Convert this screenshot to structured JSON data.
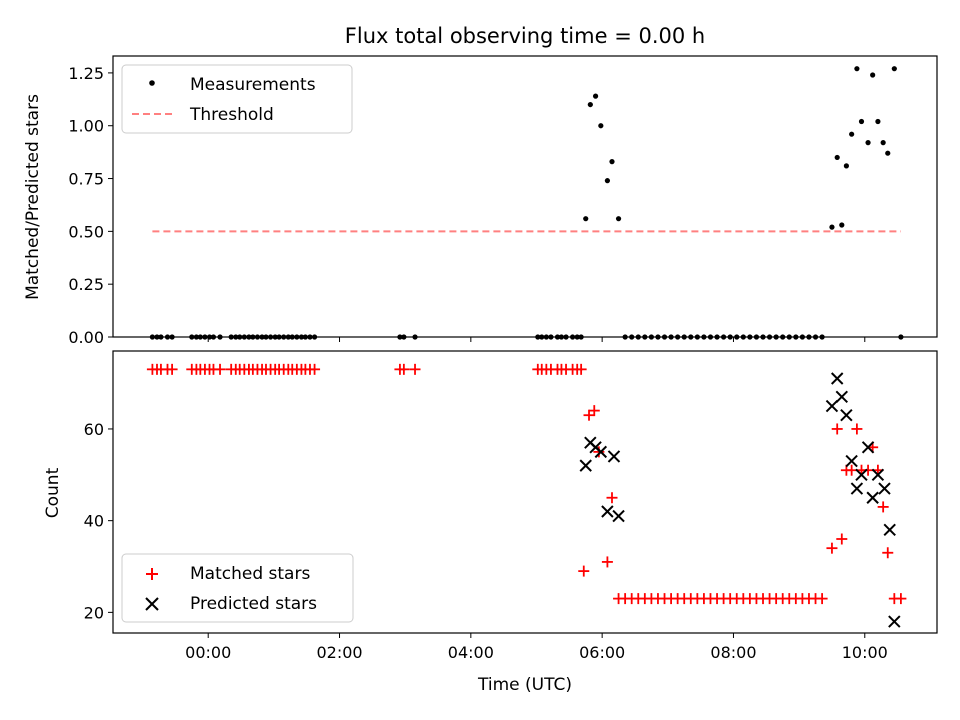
{
  "chart_data": [
    {
      "type": "scatter",
      "title": "Flux total observing time = 0.00 h",
      "xlabel": "",
      "ylabel": "Matched/Predicted stars",
      "ylim": [
        0,
        1.33
      ],
      "xlim": [
        -1.45,
        11.1
      ],
      "yticks": [
        0,
        0.25,
        0.5,
        0.75,
        1.0,
        1.25
      ],
      "ytick_labels": [
        "0.00",
        "0.25",
        "0.50",
        "0.75",
        "1.00",
        "1.25"
      ],
      "legend": {
        "position": "upper-left",
        "entries": [
          "Measurements",
          "Threshold"
        ]
      },
      "threshold": {
        "name": "Threshold",
        "value": 0.5,
        "x_range": [
          -0.85,
          10.55
        ],
        "color": "#ff8080"
      },
      "measurements": {
        "name": "Measurements",
        "color": "#000000",
        "x": [
          -0.85,
          -0.78,
          -0.72,
          -0.62,
          -0.55,
          -0.25,
          -0.18,
          -0.12,
          -0.05,
          0.02,
          0.08,
          0.18,
          0.35,
          0.42,
          0.48,
          0.55,
          0.62,
          0.68,
          0.75,
          0.82,
          0.88,
          0.95,
          1.02,
          1.08,
          1.15,
          1.22,
          1.28,
          1.35,
          1.42,
          1.48,
          1.55,
          1.62,
          2.92,
          2.98,
          3.15,
          5.02,
          5.08,
          5.15,
          5.22,
          5.32,
          5.38,
          5.45,
          5.55,
          5.62,
          5.68,
          5.75,
          5.82,
          5.9,
          5.98,
          6.08,
          6.15,
          6.25,
          6.35,
          6.45,
          6.55,
          6.65,
          6.75,
          6.85,
          6.95,
          7.05,
          7.15,
          7.25,
          7.35,
          7.45,
          7.55,
          7.65,
          7.75,
          7.85,
          7.95,
          8.05,
          8.15,
          8.25,
          8.35,
          8.45,
          8.55,
          8.65,
          8.75,
          8.85,
          8.95,
          9.05,
          9.15,
          9.25,
          9.35,
          9.5,
          9.58,
          9.65,
          9.72,
          9.8,
          9.88,
          9.95,
          10.05,
          10.12,
          10.2,
          10.28,
          10.35,
          10.45,
          10.55
        ],
        "y": [
          0,
          0,
          0,
          0,
          0,
          0,
          0,
          0,
          0,
          0,
          0,
          0,
          0,
          0,
          0,
          0,
          0,
          0,
          0,
          0,
          0,
          0,
          0,
          0,
          0,
          0,
          0,
          0,
          0,
          0,
          0,
          0,
          0,
          0,
          0,
          0,
          0,
          0,
          0,
          0,
          0,
          0,
          0,
          0,
          0,
          0.56,
          1.1,
          1.14,
          1.0,
          0.74,
          0.83,
          0.56,
          0,
          0,
          0,
          0,
          0,
          0,
          0,
          0,
          0,
          0,
          0,
          0,
          0,
          0,
          0,
          0,
          0,
          0,
          0,
          0,
          0,
          0,
          0,
          0,
          0,
          0,
          0,
          0,
          0,
          0,
          0,
          0.52,
          0.85,
          0.53,
          0.81,
          0.96,
          1.27,
          1.02,
          0.92,
          1.24,
          1.02,
          0.92,
          0.87,
          1.27,
          0
        ]
      }
    },
    {
      "type": "scatter",
      "title": "",
      "xlabel": "Time (UTC)",
      "ylabel": "Count",
      "ylim": [
        15.5,
        77
      ],
      "xlim": [
        -1.45,
        11.1
      ],
      "yticks": [
        20,
        40,
        60
      ],
      "ytick_labels": [
        "20",
        "40",
        "60"
      ],
      "xticks": [
        0,
        2,
        4,
        6,
        8,
        10
      ],
      "xtick_labels": [
        "00:00",
        "02:00",
        "04:00",
        "06:00",
        "08:00",
        "10:00"
      ],
      "legend": {
        "position": "lower-left",
        "entries": [
          "Matched stars",
          "Predicted stars"
        ]
      },
      "matched": {
        "name": "Matched stars",
        "color": "#ff0000",
        "marker": "+",
        "x": [
          -0.85,
          -0.78,
          -0.72,
          -0.62,
          -0.55,
          -0.25,
          -0.18,
          -0.12,
          -0.05,
          0.02,
          0.08,
          0.18,
          0.35,
          0.42,
          0.48,
          0.55,
          0.62,
          0.68,
          0.75,
          0.82,
          0.88,
          0.95,
          1.02,
          1.08,
          1.15,
          1.22,
          1.28,
          1.35,
          1.42,
          1.48,
          1.55,
          1.62,
          2.92,
          2.98,
          3.15,
          5.02,
          5.08,
          5.15,
          5.22,
          5.32,
          5.38,
          5.45,
          5.55,
          5.62,
          5.68,
          5.72,
          5.8,
          5.88,
          5.95,
          6.08,
          6.15,
          6.25,
          6.35,
          6.45,
          6.55,
          6.65,
          6.75,
          6.85,
          6.95,
          7.05,
          7.15,
          7.25,
          7.35,
          7.45,
          7.55,
          7.65,
          7.75,
          7.85,
          7.95,
          8.05,
          8.15,
          8.25,
          8.35,
          8.45,
          8.55,
          8.65,
          8.75,
          8.85,
          8.95,
          9.05,
          9.15,
          9.25,
          9.35,
          9.5,
          9.58,
          9.65,
          9.72,
          9.8,
          9.88,
          9.95,
          10.05,
          10.12,
          10.2,
          10.28,
          10.35,
          10.45,
          10.55
        ],
        "y": [
          73,
          73,
          73,
          73,
          73,
          73,
          73,
          73,
          73,
          73,
          73,
          73,
          73,
          73,
          73,
          73,
          73,
          73,
          73,
          73,
          73,
          73,
          73,
          73,
          73,
          73,
          73,
          73,
          73,
          73,
          73,
          73,
          73,
          73,
          73,
          73,
          73,
          73,
          73,
          73,
          73,
          73,
          73,
          73,
          73,
          29,
          63,
          64,
          55,
          31,
          45,
          23,
          23,
          23,
          23,
          23,
          23,
          23,
          23,
          23,
          23,
          23,
          23,
          23,
          23,
          23,
          23,
          23,
          23,
          23,
          23,
          23,
          23,
          23,
          23,
          23,
          23,
          23,
          23,
          23,
          23,
          23,
          23,
          34,
          60,
          36,
          51,
          51,
          60,
          51,
          51,
          56,
          51,
          43,
          33,
          23,
          23
        ]
      },
      "predicted": {
        "name": "Predicted stars",
        "color": "#000000",
        "marker": "x",
        "x": [
          5.75,
          5.82,
          5.9,
          5.98,
          6.08,
          6.18,
          6.25,
          9.5,
          9.58,
          9.65,
          9.72,
          9.8,
          9.88,
          9.95,
          10.05,
          10.12,
          10.2,
          10.3,
          10.38,
          10.45
        ],
        "y": [
          52,
          57,
          56,
          55,
          42,
          54,
          41,
          65,
          71,
          67,
          63,
          53,
          47,
          50,
          56,
          45,
          50,
          47,
          38,
          18
        ]
      }
    }
  ]
}
